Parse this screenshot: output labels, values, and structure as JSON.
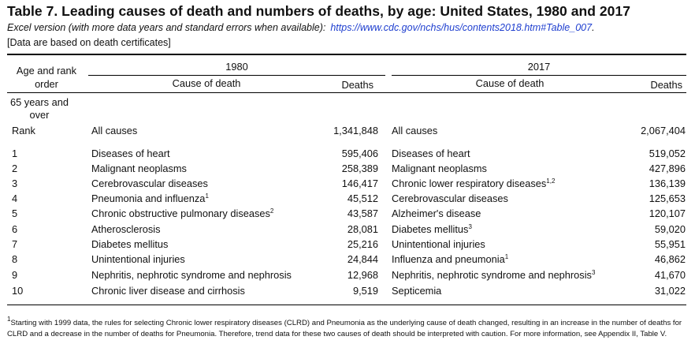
{
  "title": "Table 7. Leading causes of death and numbers of deaths, by age: United States, 1980 and 2017",
  "subtitle": "Excel version (with more data years and standard errors when available):",
  "subtitle_link": "https://www.cdc.gov/nchs/hus/contents2018.htm#Table_007",
  "subtitle_end": ".",
  "note": "[Data are based on death certificates]",
  "headers": {
    "age_rank_line1": "Age and rank",
    "age_rank_line2": "order",
    "year_a": "1980",
    "year_b": "2017",
    "cause_a": "Cause of death",
    "deaths_a": "Deaths",
    "cause_b": "Cause of death",
    "deaths_b": "Deaths"
  },
  "group": {
    "line1": "65 years and",
    "line2": "over"
  },
  "all_causes": {
    "label": "Rank",
    "cause_a": "All causes",
    "deaths_a": "1,341,848",
    "cause_b": "All causes",
    "deaths_b": "2,067,404"
  },
  "rows": [
    {
      "rank": "1",
      "cause_a": "Diseases of heart",
      "sup_a": "",
      "deaths_a": "595,406",
      "cause_b": "Diseases of heart",
      "sup_b": "",
      "deaths_b": "519,052"
    },
    {
      "rank": "2",
      "cause_a": "Malignant neoplasms",
      "sup_a": "",
      "deaths_a": "258,389",
      "cause_b": "Malignant neoplasms",
      "sup_b": "",
      "deaths_b": "427,896"
    },
    {
      "rank": "3",
      "cause_a": "Cerebrovascular diseases",
      "sup_a": "",
      "deaths_a": "146,417",
      "cause_b": "Chronic lower respiratory diseases",
      "sup_b": "1,2",
      "deaths_b": "136,139"
    },
    {
      "rank": "4",
      "cause_a": "Pneumonia and influenza",
      "sup_a": "1",
      "deaths_a": "45,512",
      "cause_b": "Cerebrovascular diseases",
      "sup_b": "",
      "deaths_b": "125,653"
    },
    {
      "rank": "5",
      "cause_a": "Chronic obstructive pulmonary diseases",
      "sup_a": "2",
      "deaths_a": "43,587",
      "cause_b": "Alzheimer's disease",
      "sup_b": "",
      "deaths_b": "120,107"
    },
    {
      "rank": "6",
      "cause_a": "Atherosclerosis",
      "sup_a": "",
      "deaths_a": "28,081",
      "cause_b": "Diabetes mellitus",
      "sup_b": "3",
      "deaths_b": "59,020"
    },
    {
      "rank": "7",
      "cause_a": "Diabetes mellitus",
      "sup_a": "",
      "deaths_a": "25,216",
      "cause_b": "Unintentional injuries",
      "sup_b": "",
      "deaths_b": "55,951"
    },
    {
      "rank": "8",
      "cause_a": "Unintentional injuries",
      "sup_a": "",
      "deaths_a": "24,844",
      "cause_b": "Influenza and pneumonia",
      "sup_b": "1",
      "deaths_b": "46,862"
    },
    {
      "rank": "9",
      "cause_a": "Nephritis, nephrotic syndrome and nephrosis",
      "sup_a": "",
      "deaths_a": "12,968",
      "cause_b": "Nephritis, nephrotic syndrome and nephrosis",
      "sup_b": "3",
      "deaths_b": "41,670"
    },
    {
      "rank": "10",
      "cause_a": "Chronic liver disease and cirrhosis",
      "sup_a": "",
      "deaths_a": "9,519",
      "cause_b": "Septicemia",
      "sup_b": "",
      "deaths_b": "31,022"
    }
  ],
  "footnote_mark": "1",
  "footnote": "Starting with 1999 data, the rules for selecting Chronic lower respiratory diseases (CLRD) and Pneumonia as the underlying cause of death changed, resulting in an increase in the number of deaths for CLRD and a decrease in the number of deaths for Pneumonia. Therefore, trend data for these two causes of death should be interpreted with caution. For more information, see Appendix II, Table V."
}
